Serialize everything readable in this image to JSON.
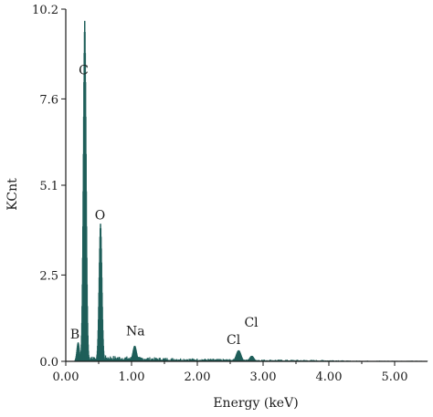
{
  "chart_data": {
    "type": "bar",
    "title": "",
    "xlabel": "Energy (keV)",
    "ylabel": "KCnt",
    "xlim": [
      0.0,
      5.5
    ],
    "ylim": [
      0.0,
      10.2
    ],
    "x_ticks": [
      "0.00",
      "1.00",
      "2.00",
      "3.00",
      "4.00",
      "5.00"
    ],
    "x_tick_values": [
      0.0,
      1.0,
      2.0,
      3.0,
      4.0,
      5.0
    ],
    "y_ticks": [
      "0.0",
      "2.5",
      "5.1",
      "7.6",
      "10.2"
    ],
    "y_tick_values": [
      0.0,
      2.5,
      5.1,
      7.6,
      10.2
    ],
    "bar_color": "#1f5f5a",
    "grid": false,
    "peaks": [
      {
        "element": "B",
        "energy": 0.18,
        "height": 0.55,
        "width": 0.05
      },
      {
        "element": "C",
        "energy": 0.28,
        "height": 9.9,
        "width": 0.055
      },
      {
        "element": "O",
        "energy": 0.52,
        "height": 4.0,
        "width": 0.055
      },
      {
        "element": "Na",
        "energy": 1.04,
        "height": 0.45,
        "width": 0.07
      },
      {
        "element": "Cl",
        "energy": 2.62,
        "height": 0.32,
        "width": 0.09
      },
      {
        "element": "Cl",
        "energy": 2.82,
        "height": 0.16,
        "width": 0.08
      }
    ],
    "annotations": [
      {
        "text": "C",
        "energy": 0.27,
        "y": 8.2
      },
      {
        "text": "O",
        "energy": 0.52,
        "y": 4.0
      },
      {
        "text": "B",
        "energy": 0.14,
        "y": 0.55
      },
      {
        "text": "Na",
        "energy": 1.06,
        "y": 0.65
      },
      {
        "text": "Cl",
        "energy": 2.55,
        "y": 0.4
      },
      {
        "text": "Cl",
        "energy": 2.82,
        "y": 0.9
      }
    ]
  }
}
